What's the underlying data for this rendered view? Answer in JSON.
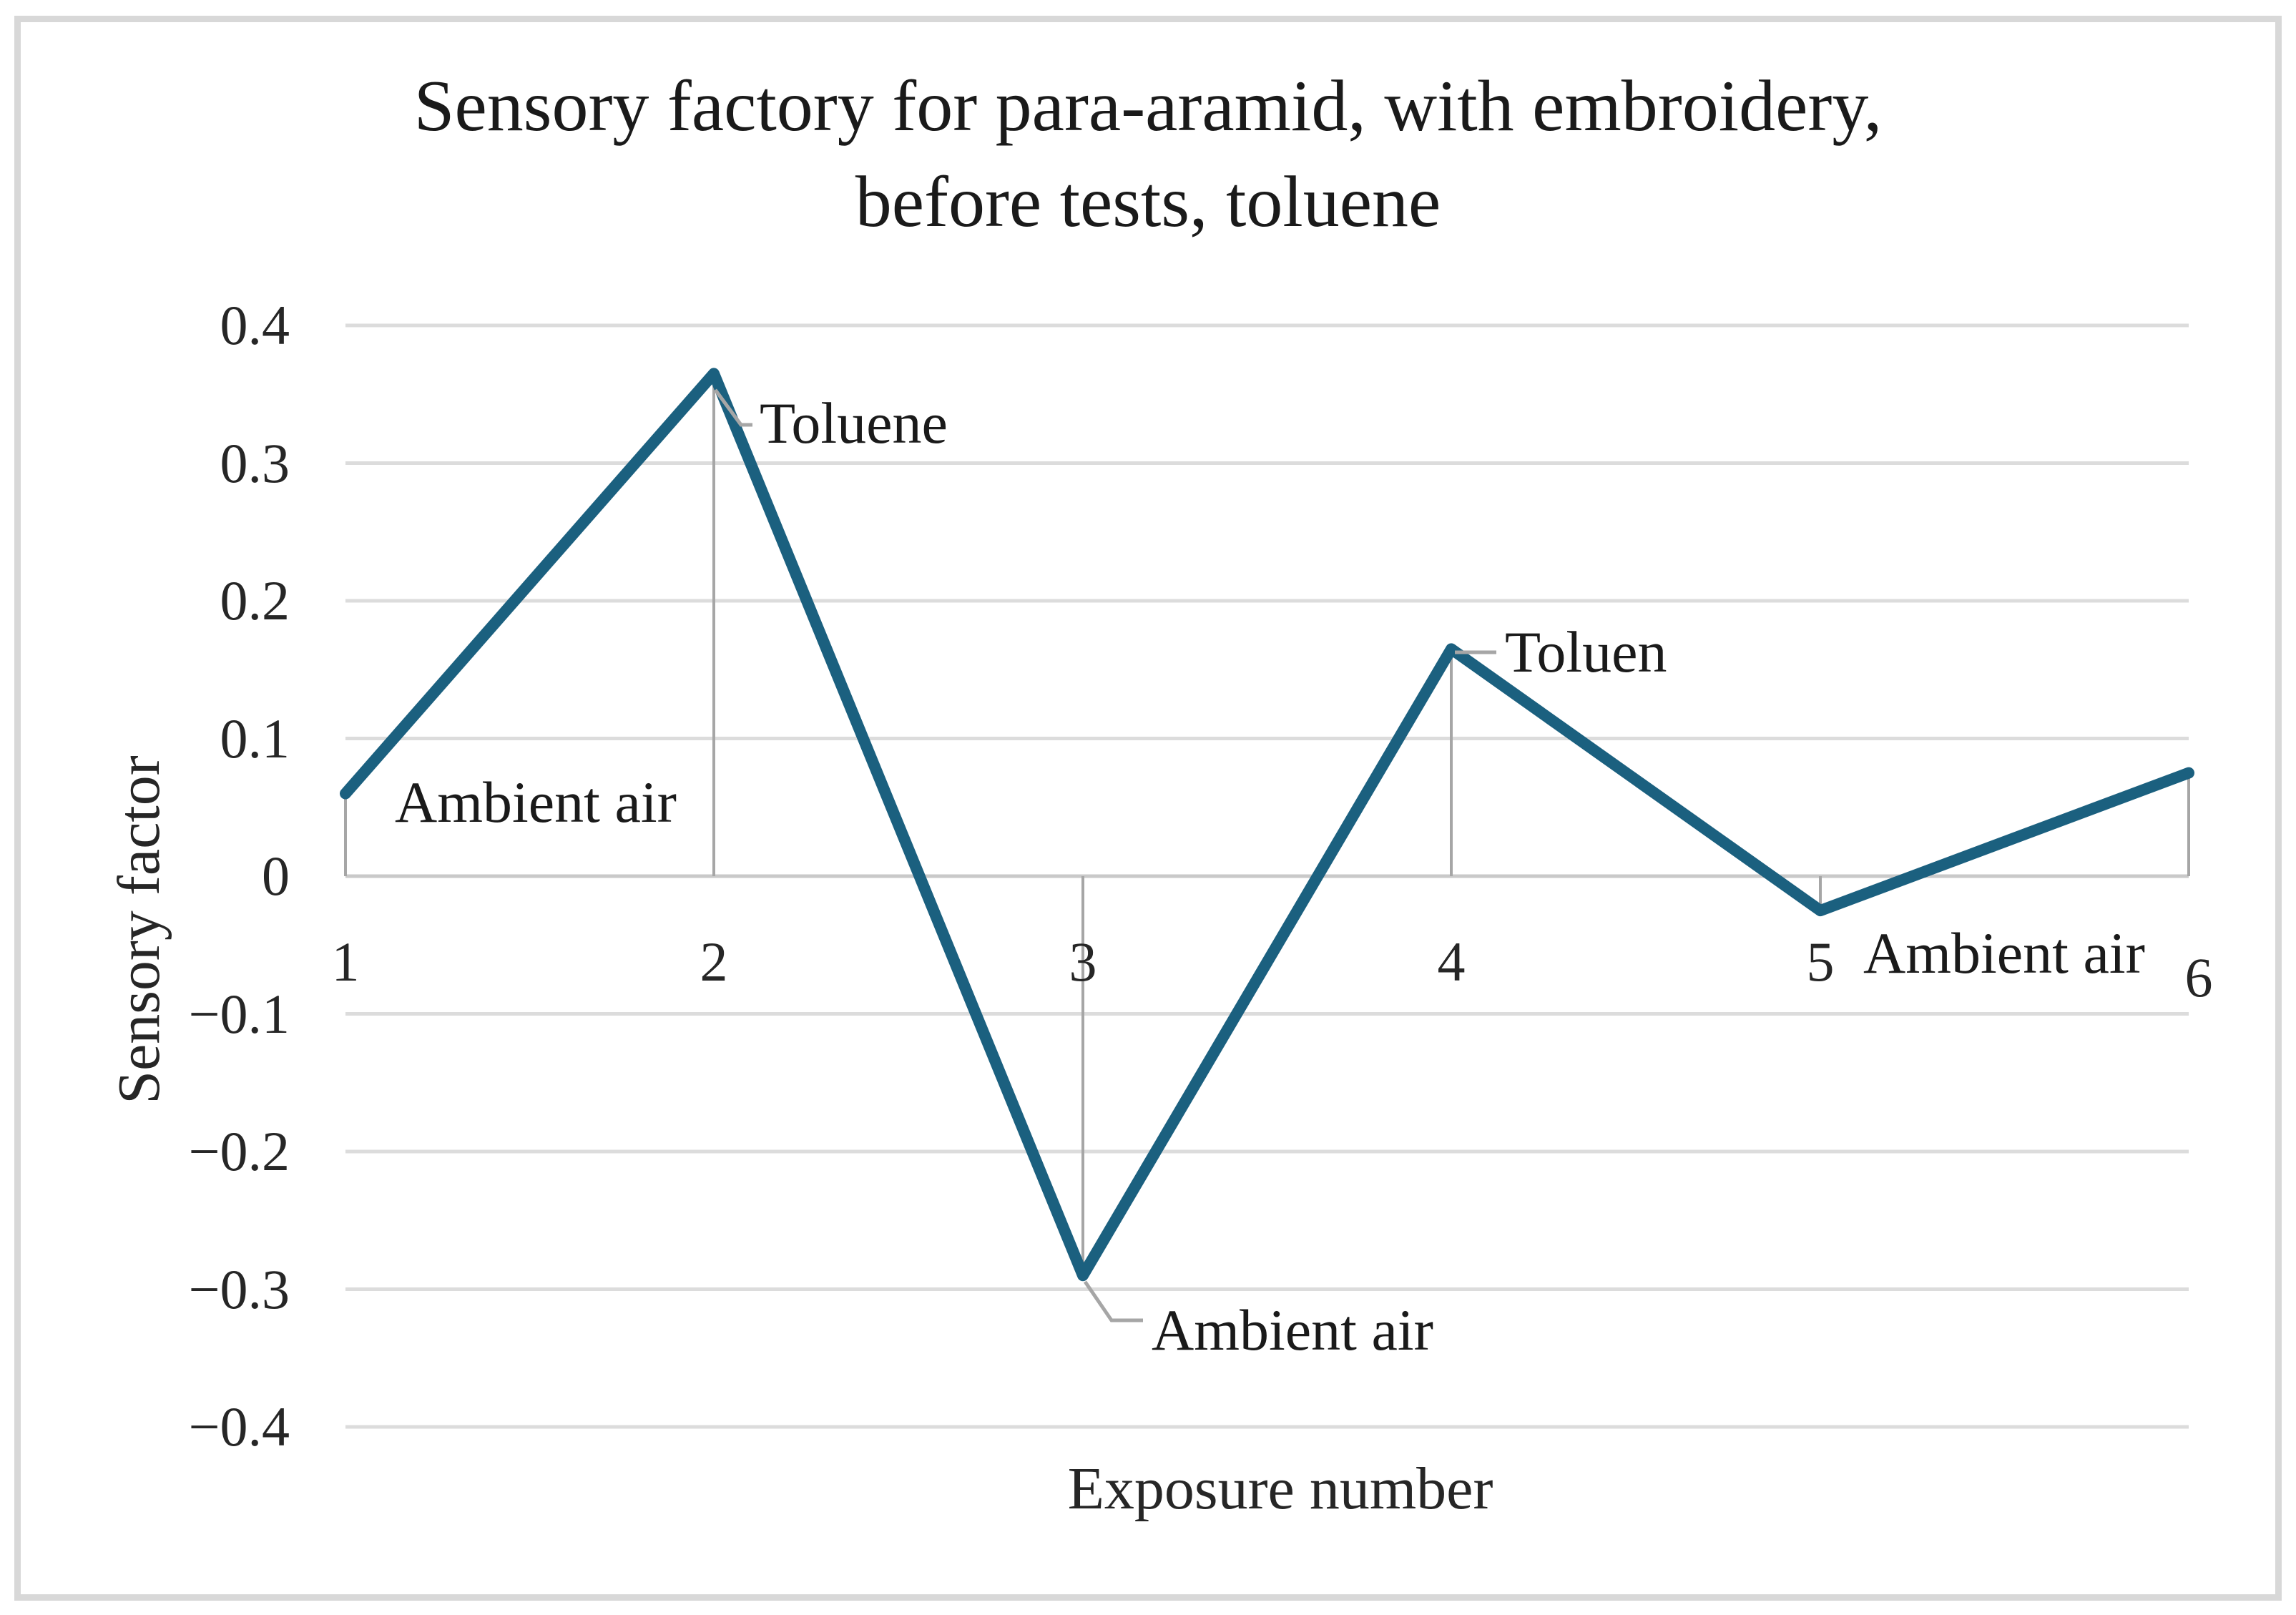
{
  "figure": {
    "title_line1": "Sensory factory for para-aramid, with embroidery,",
    "title_line2": "before tests, toluene"
  },
  "chart_data": {
    "type": "line",
    "title": "Sensory factory for para-aramid, with embroidery, before tests, toluene",
    "xlabel": "Exposure number",
    "ylabel": "Sensory factor",
    "x": [
      1,
      2,
      3,
      4,
      5,
      6
    ],
    "values": [
      0.06,
      0.365,
      -0.29,
      0.165,
      -0.025,
      0.075
    ],
    "xticks": [
      "1",
      "2",
      "3",
      "4",
      "5",
      "6"
    ],
    "yticks": [
      {
        "value": 0.4,
        "label": "0.4"
      },
      {
        "value": 0.3,
        "label": "0.3"
      },
      {
        "value": 0.2,
        "label": "0.2"
      },
      {
        "value": 0.1,
        "label": "0.1"
      },
      {
        "value": 0,
        "label": "0"
      },
      {
        "value": -0.1,
        "label": "−0.1"
      },
      {
        "value": -0.2,
        "label": "−0.2"
      },
      {
        "value": -0.3,
        "label": "−0.3"
      },
      {
        "value": -0.4,
        "label": "−0.4"
      }
    ],
    "ylim": [
      -0.4,
      0.4
    ],
    "grid": "horizontal",
    "legend": "none",
    "annotations": [
      {
        "point": 1,
        "text": "Ambient air"
      },
      {
        "point": 2,
        "text": "Toluene"
      },
      {
        "point": 3,
        "text": "Ambient air"
      },
      {
        "point": 4,
        "text": "Toluen"
      },
      {
        "point": 5,
        "text": "Ambient air"
      }
    ],
    "colors": {
      "series": "#1b607f",
      "gridline": "#dcdcdc",
      "axis_line": "#c9c9c9",
      "leader_line": "#a6a6a6",
      "text": "#262626",
      "frame_border": "#d8d8d8"
    }
  }
}
